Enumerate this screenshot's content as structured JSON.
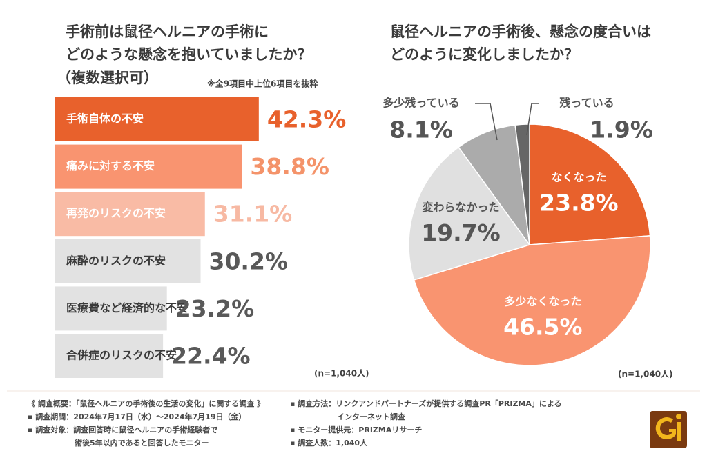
{
  "chart_data": [
    {
      "type": "barh",
      "title": [
        "手術前は鼠径ヘルニアの手術に",
        "どのような懸念を抱いていましたか？",
        "（複数選択可）"
      ],
      "note": "※全9項目中上位6項目を抜粋",
      "sample_note": "(n=1,040人)",
      "categories": [
        "手術自体の不安",
        "痛みに対する不安",
        "再発のリスクの不安",
        "麻酔のリスクの不安",
        "医療費など経済的な不安",
        "合併症のリスクの不安"
      ],
      "values": [
        42.3,
        38.8,
        31.1,
        30.2,
        23.2,
        22.4
      ],
      "value_labels": [
        "42.3%",
        "38.8%",
        "31.1%",
        "30.2%",
        "23.2%",
        "22.4%"
      ],
      "colors": [
        "#e8612c",
        "#f99470",
        "#f9bba5",
        "#e2e2e2",
        "#e2e2e2",
        "#e2e2e2"
      ],
      "label_colors": [
        "#e8612c",
        "#f4936a",
        "#f7b9a3",
        "#595959",
        "#595959",
        "#595959"
      ]
    },
    {
      "type": "pie",
      "title": [
        "鼠径ヘルニアの手術後、懸念の度合いは",
        "どのように変化しましたか？"
      ],
      "sample_note": "(n=1,040人)",
      "categories": [
        "なくなった",
        "多少なくなった",
        "変わらなかった",
        "多少残っている",
        "残っている"
      ],
      "values": [
        23.8,
        46.5,
        19.7,
        8.1,
        1.9
      ],
      "value_labels": [
        "23.8%",
        "46.5%",
        "19.7%",
        "8.1%",
        "1.9%"
      ],
      "colors": [
        "#e8612c",
        "#f99470",
        "#e0e0e0",
        "#ababab",
        "#666666"
      ]
    }
  ],
  "footer": {
    "left": [
      "《 調査概要：「鼠径ヘルニアの手術後の生活の変化」に関する調査 》",
      "▪ 調査期間：2024年7月17日（水）～2024年7月19日（金）",
      "▪ 調査対象：調査回答時に鼠径ヘルニアの手術経験者で",
      "術後5年以内であると回答したモニター"
    ],
    "right": [
      "▪ 調査方法：リンクアンドパートナーズが提供する調査PR「PRIZMA」による",
      "インターネット調査",
      "▪ モニター提供元：PRIZMAリサーチ",
      "▪ 調査人数：1,040人"
    ]
  }
}
